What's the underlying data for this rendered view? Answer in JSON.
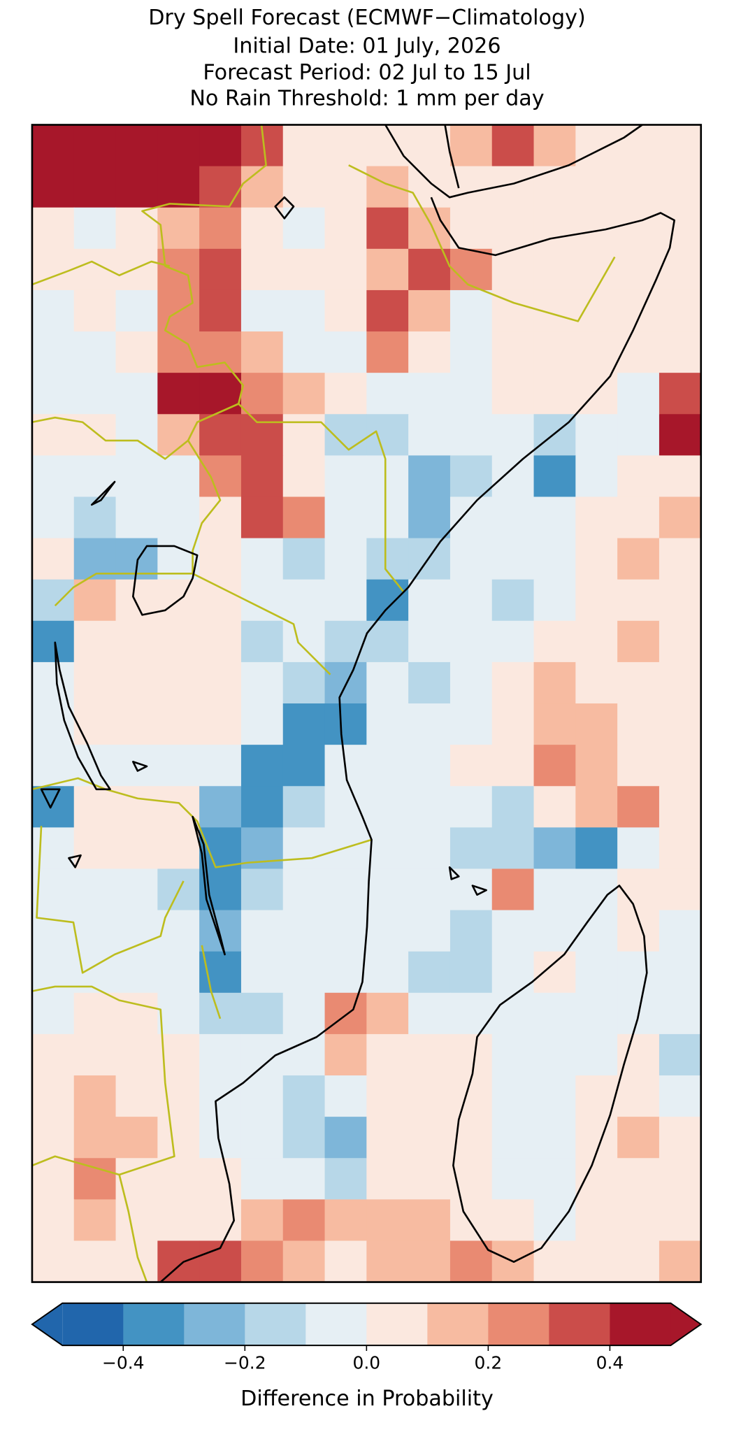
{
  "chart_data": {
    "type": "heatmap",
    "title_lines": [
      "Dry Spell Forecast (ECMWF−Climatology)",
      "Initial Date: 01 July, 2026",
      "Forecast Period: 02 Jul to 15 Jul",
      "No Rain Threshold: 1 mm per day"
    ],
    "grid": [
      [
        0.45,
        0.45,
        0.45,
        0.45,
        0.45,
        0.35,
        0.05,
        0.05,
        0.05,
        0.05,
        0.15,
        0.35,
        0.15,
        0.05,
        0.05,
        0.05
      ],
      [
        0.45,
        0.45,
        0.45,
        0.45,
        0.35,
        0.15,
        0.05,
        0.05,
        0.15,
        0.05,
        0.05,
        0.05,
        0.05,
        0.05,
        0.05,
        0.05
      ],
      [
        0.05,
        -0.05,
        0.05,
        0.15,
        0.25,
        0.05,
        -0.05,
        0.05,
        0.35,
        0.15,
        0.05,
        0.05,
        0.05,
        0.05,
        0.05,
        0.05
      ],
      [
        0.05,
        0.05,
        0.05,
        0.25,
        0.35,
        0.05,
        0.05,
        0.05,
        0.15,
        0.35,
        0.25,
        0.05,
        0.05,
        0.05,
        0.05,
        0.05
      ],
      [
        -0.05,
        0.05,
        -0.05,
        0.25,
        0.35,
        -0.05,
        -0.05,
        0.05,
        0.35,
        0.15,
        -0.05,
        0.05,
        0.05,
        0.05,
        0.05,
        0.05
      ],
      [
        -0.05,
        -0.05,
        0.05,
        0.25,
        0.25,
        0.15,
        -0.05,
        -0.05,
        0.25,
        0.05,
        -0.05,
        0.05,
        0.05,
        0.05,
        0.05,
        0.05
      ],
      [
        -0.05,
        -0.05,
        -0.05,
        0.45,
        0.45,
        0.25,
        0.15,
        0.05,
        -0.05,
        -0.05,
        -0.05,
        0.05,
        0.05,
        0.05,
        -0.05,
        0.35
      ],
      [
        0.05,
        0.05,
        -0.05,
        0.15,
        0.35,
        0.35,
        0.05,
        -0.15,
        -0.15,
        -0.05,
        -0.05,
        -0.05,
        -0.15,
        -0.05,
        -0.05,
        0.45
      ],
      [
        -0.05,
        -0.05,
        -0.05,
        -0.05,
        0.25,
        0.35,
        0.05,
        -0.05,
        -0.05,
        -0.25,
        -0.15,
        -0.05,
        -0.35,
        -0.05,
        0.05,
        0.05
      ],
      [
        -0.05,
        -0.15,
        -0.05,
        -0.05,
        0.05,
        0.35,
        0.25,
        -0.05,
        -0.05,
        -0.25,
        -0.05,
        -0.05,
        -0.05,
        0.05,
        0.05,
        0.15
      ],
      [
        0.05,
        -0.25,
        -0.25,
        -0.05,
        0.05,
        -0.05,
        -0.15,
        -0.05,
        -0.15,
        -0.15,
        -0.05,
        -0.05,
        -0.05,
        0.05,
        0.15,
        0.05
      ],
      [
        -0.15,
        0.15,
        0.05,
        0.05,
        0.05,
        -0.05,
        -0.05,
        -0.05,
        -0.35,
        -0.05,
        -0.05,
        -0.15,
        -0.05,
        0.05,
        0.05,
        0.05
      ],
      [
        -0.35,
        0.05,
        0.05,
        0.05,
        0.05,
        -0.15,
        -0.05,
        -0.15,
        -0.15,
        -0.05,
        -0.05,
        -0.05,
        0.05,
        0.05,
        0.15,
        0.05
      ],
      [
        -0.05,
        0.05,
        0.05,
        0.05,
        0.05,
        -0.05,
        -0.15,
        -0.25,
        -0.05,
        -0.15,
        -0.05,
        0.05,
        0.15,
        0.05,
        0.05,
        0.05
      ],
      [
        -0.05,
        0.05,
        0.05,
        0.05,
        0.05,
        -0.05,
        -0.35,
        -0.35,
        -0.05,
        -0.05,
        -0.05,
        0.05,
        0.15,
        0.15,
        0.05,
        0.05
      ],
      [
        -0.05,
        -0.05,
        -0.05,
        -0.05,
        -0.05,
        -0.35,
        -0.35,
        -0.05,
        -0.05,
        -0.05,
        0.05,
        0.05,
        0.25,
        0.15,
        0.05,
        0.05
      ],
      [
        -0.35,
        0.05,
        0.05,
        0.05,
        -0.25,
        -0.35,
        -0.15,
        -0.05,
        -0.05,
        -0.05,
        -0.05,
        -0.15,
        0.05,
        0.15,
        0.25,
        0.05
      ],
      [
        -0.05,
        0.05,
        0.05,
        0.05,
        -0.35,
        -0.25,
        -0.05,
        -0.05,
        -0.05,
        -0.05,
        -0.15,
        -0.15,
        -0.25,
        -0.35,
        -0.05,
        0.05
      ],
      [
        -0.05,
        -0.05,
        -0.05,
        -0.15,
        -0.35,
        -0.15,
        -0.05,
        -0.05,
        -0.05,
        -0.05,
        -0.05,
        0.25,
        -0.05,
        -0.05,
        0.05,
        0.05
      ],
      [
        -0.05,
        -0.05,
        -0.05,
        -0.05,
        -0.25,
        -0.05,
        -0.05,
        -0.05,
        -0.05,
        -0.05,
        -0.15,
        -0.05,
        -0.05,
        -0.05,
        0.05,
        -0.05
      ],
      [
        -0.05,
        -0.05,
        -0.05,
        -0.05,
        -0.35,
        -0.05,
        -0.05,
        -0.05,
        -0.05,
        -0.15,
        -0.15,
        -0.05,
        0.05,
        -0.05,
        -0.05,
        -0.05
      ],
      [
        -0.05,
        0.05,
        0.05,
        -0.05,
        -0.15,
        -0.15,
        -0.05,
        0.25,
        0.15,
        -0.05,
        -0.05,
        -0.05,
        -0.05,
        -0.05,
        -0.05,
        -0.05
      ],
      [
        0.05,
        0.05,
        0.05,
        0.05,
        -0.05,
        -0.05,
        -0.05,
        0.15,
        0.05,
        0.05,
        0.05,
        -0.05,
        -0.05,
        -0.05,
        0.05,
        -0.15
      ],
      [
        0.05,
        0.15,
        0.05,
        0.05,
        -0.05,
        -0.05,
        -0.15,
        -0.05,
        0.05,
        0.05,
        0.05,
        -0.05,
        -0.05,
        0.05,
        0.05,
        -0.05
      ],
      [
        0.05,
        0.15,
        0.15,
        0.05,
        -0.05,
        -0.05,
        -0.15,
        -0.25,
        0.05,
        0.05,
        0.05,
        -0.05,
        -0.05,
        0.05,
        0.15,
        0.05
      ],
      [
        0.05,
        0.25,
        0.05,
        0.05,
        0.05,
        -0.05,
        -0.05,
        -0.15,
        0.05,
        0.05,
        0.05,
        -0.05,
        -0.05,
        0.05,
        0.05,
        0.05
      ],
      [
        0.05,
        0.15,
        0.05,
        0.05,
        0.05,
        0.15,
        0.25,
        0.15,
        0.15,
        0.15,
        0.05,
        0.05,
        -0.05,
        0.05,
        0.05,
        0.05
      ],
      [
        0.05,
        0.05,
        0.05,
        0.35,
        0.35,
        0.25,
        0.15,
        0.05,
        0.15,
        0.15,
        0.25,
        0.15,
        0.05,
        0.05,
        0.05,
        0.15
      ]
    ],
    "colorbar": {
      "label": "Difference in Probability",
      "levels": [
        -0.5,
        -0.4,
        -0.3,
        -0.2,
        -0.1,
        0,
        0.1,
        0.2,
        0.3,
        0.4,
        0.5
      ],
      "colors": [
        "#2166ac",
        "#4393c3",
        "#7eb6d9",
        "#b7d7e8",
        "#e6eff4",
        "#fbe8df",
        "#f7bba1",
        "#e98a72",
        "#cb4d4a",
        "#a7172a"
      ],
      "extend": "both",
      "ticks": [
        {
          "value": -0.4,
          "label": "−0.4"
        },
        {
          "value": -0.2,
          "label": "−0.2"
        },
        {
          "value": 0,
          "label": "0.0"
        },
        0.2,
        0.4
      ]
    }
  }
}
